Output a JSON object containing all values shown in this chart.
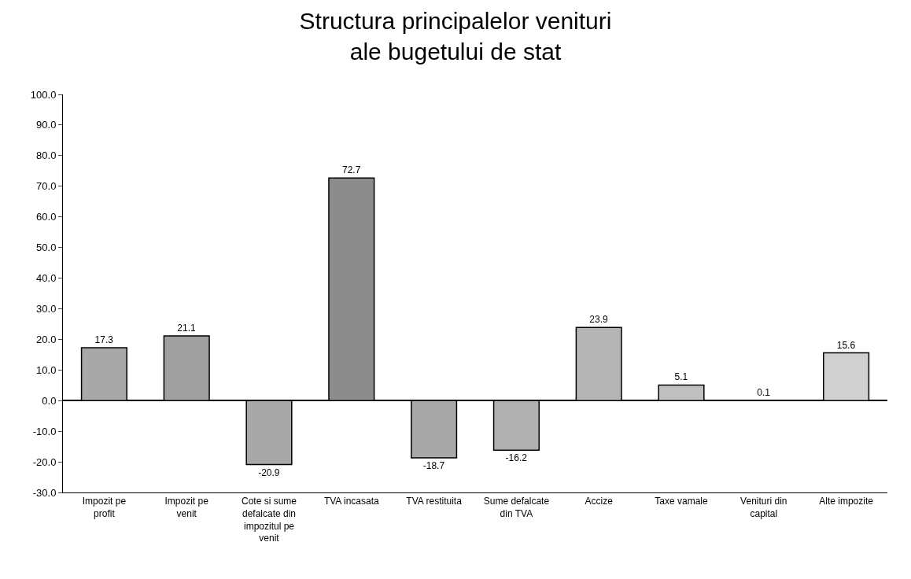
{
  "chart_data": {
    "type": "bar",
    "title": "Structura principalelor venituri\nale bugetului de stat",
    "categories": [
      "Impozit pe profit",
      "Impozit pe venit",
      "Cote si sume defalcate din impozitul pe venit",
      "TVA incasata",
      "TVA restituita",
      "Sume defalcate din TVA",
      "Accize",
      "Taxe vamale",
      "Venituri din capital",
      "Alte impozite"
    ],
    "values": [
      17.3,
      21.1,
      -20.9,
      72.7,
      -18.7,
      -16.2,
      23.9,
      5.1,
      0.1,
      15.6
    ],
    "colors": [
      "#a8a8a8",
      "#a0a0a0",
      "#a8a8a8",
      "#8c8c8c",
      "#a8a8a8",
      "#b0b0b0",
      "#b4b4b4",
      "#c0c0c0",
      "#c8c8c8",
      "#d0d0d0"
    ],
    "ylim": [
      -30,
      100
    ],
    "yticks": [
      {
        "value": -30,
        "label": "-30.0"
      },
      {
        "value": -20,
        "label": "-20.0"
      },
      {
        "value": -10,
        "label": "-10.0"
      },
      {
        "value": 0,
        "label": "0.0"
      },
      {
        "value": 10,
        "label": "10.0"
      },
      {
        "value": 20,
        "label": "20.0"
      },
      {
        "value": 30,
        "label": "30.0"
      },
      {
        "value": 40,
        "label": "40.0"
      },
      {
        "value": 50,
        "label": "50.0"
      },
      {
        "value": 60,
        "label": "60.0"
      },
      {
        "value": 70,
        "label": "70.0"
      },
      {
        "value": 80,
        "label": "80.0"
      },
      {
        "value": 90,
        "label": "90.0"
      },
      {
        "value": 100,
        "label": "100.0"
      }
    ],
    "data_labels": true
  }
}
